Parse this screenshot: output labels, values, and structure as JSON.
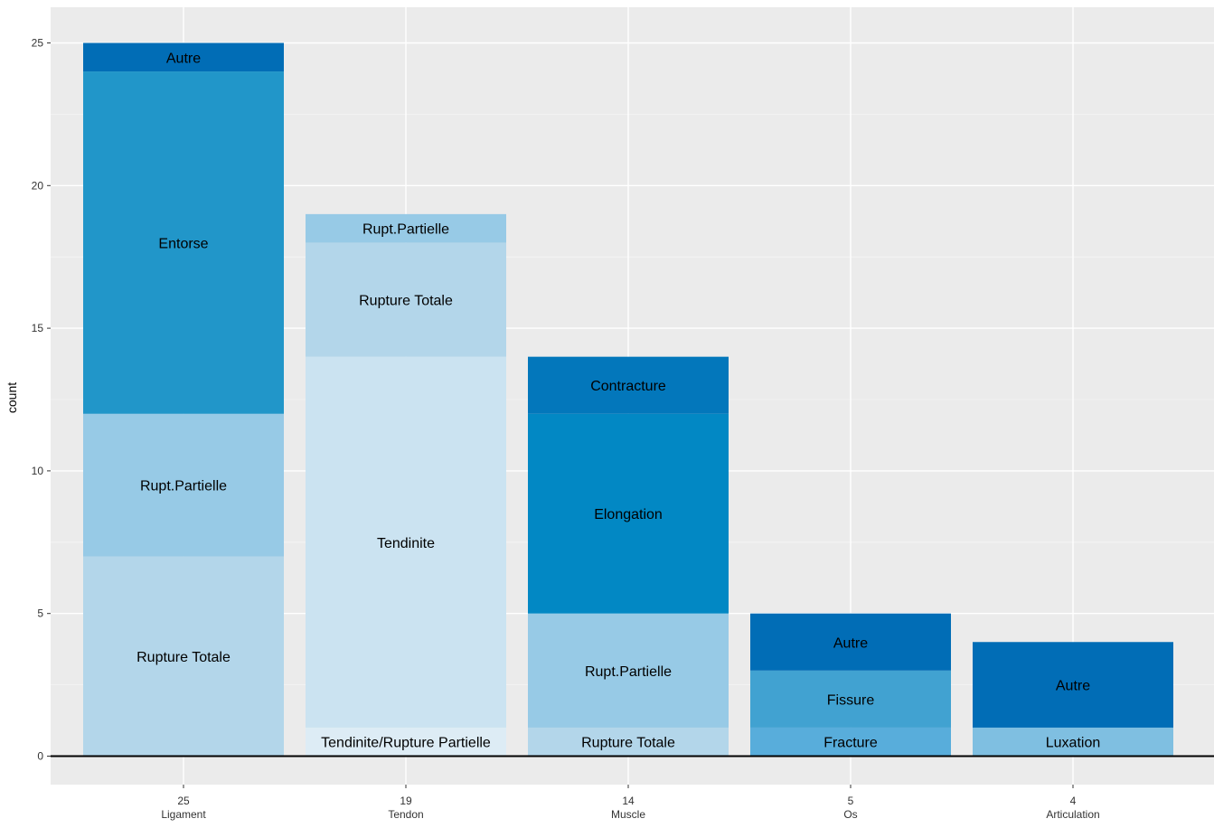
{
  "chart_data": {
    "type": "bar",
    "stacked": true,
    "ylabel": "count",
    "xlabel": "",
    "ylim": [
      0,
      25.5
    ],
    "y_ticks": [
      0,
      5,
      10,
      15,
      20,
      25
    ],
    "y_tick_labels": [
      "0",
      "5",
      "10",
      "15",
      "20",
      "25"
    ],
    "grid": true,
    "legend": "none",
    "categories": [
      {
        "name": "Ligament",
        "total_label": "25",
        "segments": [
          {
            "label": "Rupture Totale",
            "value": 7,
            "color": "#b3d6ea"
          },
          {
            "label": "Rupt.Partielle",
            "value": 5,
            "color": "#97cae6"
          },
          {
            "label": "Entorse",
            "value": 12,
            "color": "#2196c9"
          },
          {
            "label": "Autre",
            "value": 1,
            "color": "#016db6"
          }
        ]
      },
      {
        "name": "Tendon",
        "total_label": "19",
        "segments": [
          {
            "label": "Tendinite/Rupture Partielle",
            "value": 1,
            "color": "#ddecf5"
          },
          {
            "label": "Tendinite",
            "value": 13,
            "color": "#cbe3f1"
          },
          {
            "label": "Rupture Totale",
            "value": 4,
            "color": "#b3d6ea"
          },
          {
            "label": "Rupt.Partielle",
            "value": 1,
            "color": "#97cae6"
          }
        ]
      },
      {
        "name": "Muscle",
        "total_label": "14",
        "segments": [
          {
            "label": "Rupture Totale",
            "value": 1,
            "color": "#b3d6ea"
          },
          {
            "label": "Rupt.Partielle",
            "value": 4,
            "color": "#97cae6"
          },
          {
            "label": "Elongation",
            "value": 7,
            "color": "#0288c4"
          },
          {
            "label": "Contracture",
            "value": 2,
            "color": "#0377bb"
          }
        ]
      },
      {
        "name": "Os",
        "total_label": "5",
        "segments": [
          {
            "label": "Fracture",
            "value": 1,
            "color": "#58addb"
          },
          {
            "label": "Fissure",
            "value": 2,
            "color": "#41a2d1"
          },
          {
            "label": "Autre",
            "value": 2,
            "color": "#016db6"
          }
        ]
      },
      {
        "name": "Articulation",
        "total_label": "4",
        "segments": [
          {
            "label": "Luxation",
            "value": 1,
            "color": "#7fbfe1"
          },
          {
            "label": "Autre",
            "value": 3,
            "color": "#016db6"
          }
        ]
      }
    ]
  },
  "style": {
    "panel_background": "#ebebeb",
    "grid_major": "#ffffff",
    "grid_minor": "#f5f5f5",
    "baseline": "#000000"
  }
}
